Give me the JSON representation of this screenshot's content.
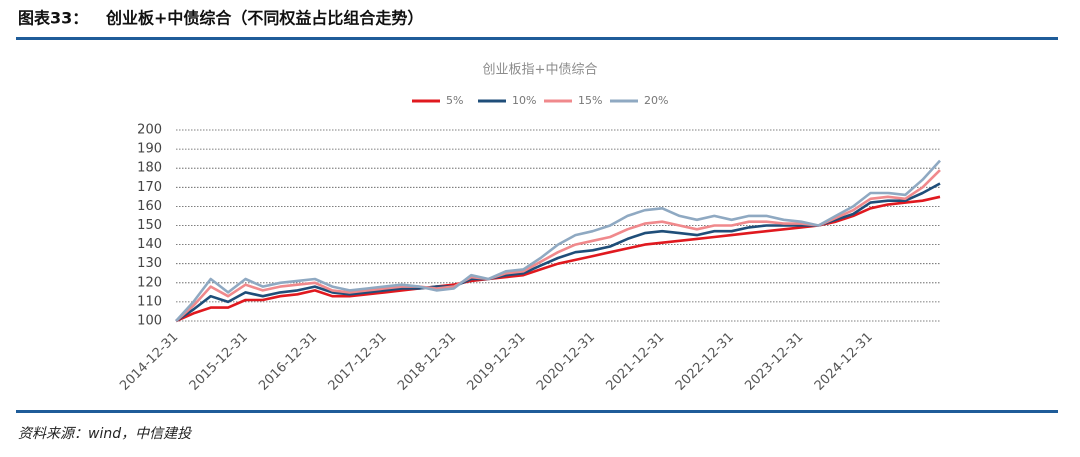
{
  "header": {
    "label": "图表33：",
    "title": "创业板+中债综合（不同权益占比组合走势）"
  },
  "chart_data": {
    "type": "line",
    "title": "创业板指+中债综合",
    "categories": [
      "2014-12-31",
      null,
      null,
      null,
      "2015-12-31",
      null,
      null,
      null,
      "2016-12-31",
      null,
      null,
      null,
      "2017-12-31",
      null,
      null,
      null,
      "2018-12-31",
      null,
      null,
      null,
      "2019-12-31",
      null,
      null,
      null,
      "2020-12-31",
      null,
      null,
      null,
      "2021-12-31",
      null,
      null,
      null,
      "2022-12-31",
      null,
      null,
      null,
      "2023-12-31",
      null,
      null,
      null,
      "2024-12-31",
      null,
      null,
      null,
      null
    ],
    "series": [
      {
        "name": "5%",
        "color": "#e0191f",
        "values": [
          100,
          104,
          107,
          107,
          111,
          111,
          113,
          114,
          116,
          113,
          113,
          114,
          115,
          116,
          117,
          118,
          119,
          121,
          122,
          123,
          124,
          127,
          130,
          132,
          134,
          136,
          138,
          140,
          141,
          142,
          143,
          144,
          145,
          146,
          147,
          148,
          149,
          150,
          152,
          155,
          159,
          161,
          162,
          163,
          165
        ]
      },
      {
        "name": "10%",
        "color": "#1f4e79",
        "values": [
          100,
          106,
          113,
          110,
          115,
          113,
          115,
          116,
          118,
          115,
          114,
          115,
          116,
          117,
          117,
          118,
          118,
          122,
          122,
          124,
          125,
          129,
          133,
          136,
          137,
          139,
          143,
          146,
          147,
          146,
          145,
          147,
          147,
          149,
          150,
          150,
          150,
          150,
          153,
          156,
          162,
          163,
          163,
          167,
          172
        ]
      },
      {
        "name": "15%",
        "color": "#f0898c",
        "values": [
          100,
          108,
          118,
          113,
          119,
          116,
          118,
          119,
          120,
          116,
          115,
          116,
          117,
          118,
          118,
          117,
          118,
          123,
          122,
          125,
          126,
          131,
          136,
          140,
          142,
          144,
          148,
          151,
          152,
          150,
          148,
          150,
          150,
          152,
          152,
          151,
          151,
          150,
          154,
          158,
          164,
          165,
          164,
          170,
          179
        ]
      },
      {
        "name": "20%",
        "color": "#8fa9c2",
        "values": [
          100,
          110,
          122,
          115,
          122,
          118,
          120,
          121,
          122,
          118,
          116,
          117,
          118,
          119,
          118,
          116,
          117,
          124,
          122,
          126,
          127,
          133,
          140,
          145,
          147,
          150,
          155,
          158,
          159,
          155,
          153,
          155,
          153,
          155,
          155,
          153,
          152,
          150,
          155,
          160,
          167,
          167,
          166,
          174,
          184
        ]
      }
    ],
    "ylim": [
      100,
      200
    ],
    "yticks": [
      100,
      110,
      120,
      130,
      140,
      150,
      160,
      170,
      180,
      190,
      200
    ],
    "grid": true,
    "legend": "top"
  },
  "footer": {
    "source": "资料来源：wind，中信建投"
  }
}
